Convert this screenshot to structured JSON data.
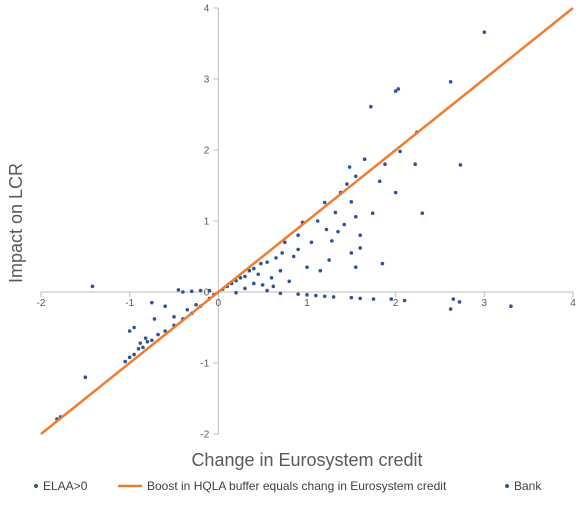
{
  "chart_data": {
    "type": "scatter",
    "title": "",
    "xlabel": "Change in Eurosystem credit",
    "ylabel": "Impact on LCR",
    "xlim": [
      -2,
      4
    ],
    "ylim": [
      -2,
      4
    ],
    "x_ticks": [
      "-2",
      "-1",
      "0",
      "1",
      "2",
      "3",
      "4"
    ],
    "y_ticks": [
      "-2",
      "-1",
      "0",
      "1",
      "2",
      "3",
      "4"
    ],
    "grid": false,
    "legend_position": "bottom",
    "series": [
      {
        "name": "ELAA>0",
        "kind": "points",
        "color": "#2f5597",
        "points": []
      },
      {
        "name": "Boost in HQLA buffer equals chang in Eurosystem credit",
        "kind": "line",
        "color": "#ed7d31",
        "points": [
          [
            -2,
            -2
          ],
          [
            4,
            4
          ]
        ]
      },
      {
        "name": "Bank",
        "kind": "points",
        "color": "#2f5597",
        "points": [
          [
            3.0,
            3.66
          ],
          [
            2.62,
            2.96
          ],
          [
            2.03,
            2.86
          ],
          [
            2.0,
            2.83
          ],
          [
            1.72,
            2.61
          ],
          [
            2.24,
            2.25
          ],
          [
            2.05,
            1.98
          ],
          [
            1.65,
            1.87
          ],
          [
            1.88,
            1.8
          ],
          [
            2.22,
            1.8
          ],
          [
            2.73,
            1.79
          ],
          [
            1.48,
            1.76
          ],
          [
            1.55,
            1.63
          ],
          [
            1.82,
            1.56
          ],
          [
            2.0,
            1.4
          ],
          [
            1.45,
            1.52
          ],
          [
            1.38,
            1.4
          ],
          [
            1.5,
            1.27
          ],
          [
            1.2,
            1.26
          ],
          [
            1.32,
            1.12
          ],
          [
            1.74,
            1.11
          ],
          [
            2.3,
            1.11
          ],
          [
            1.55,
            1.06
          ],
          [
            1.42,
            0.95
          ],
          [
            1.12,
            1.0
          ],
          [
            0.95,
            0.98
          ],
          [
            1.35,
            0.85
          ],
          [
            1.22,
            0.88
          ],
          [
            1.6,
            0.8
          ],
          [
            0.9,
            0.8
          ],
          [
            1.05,
            0.7
          ],
          [
            1.28,
            0.72
          ],
          [
            1.5,
            0.55
          ],
          [
            1.6,
            0.62
          ],
          [
            1.85,
            0.4
          ],
          [
            1.55,
            0.35
          ],
          [
            1.25,
            0.45
          ],
          [
            1.15,
            0.3
          ],
          [
            0.9,
            0.6
          ],
          [
            0.75,
            0.7
          ],
          [
            0.72,
            0.55
          ],
          [
            0.65,
            0.48
          ],
          [
            0.55,
            0.42
          ],
          [
            0.48,
            0.4
          ],
          [
            0.4,
            0.33
          ],
          [
            0.35,
            0.3
          ],
          [
            0.3,
            0.22
          ],
          [
            0.25,
            0.2
          ],
          [
            0.2,
            0.16
          ],
          [
            0.15,
            0.12
          ],
          [
            0.1,
            0.08
          ],
          [
            0.05,
            0.04
          ],
          [
            0.6,
            0.2
          ],
          [
            0.8,
            0.15
          ],
          [
            0.5,
            0.1
          ],
          [
            0.7,
            0.3
          ],
          [
            0.45,
            0.25
          ],
          [
            1.0,
            0.35
          ],
          [
            0.85,
            0.5
          ],
          [
            0.62,
            0.08
          ],
          [
            0.3,
            0.05
          ],
          [
            0.4,
            0.12
          ],
          [
            0.55,
            0.02
          ],
          [
            0.7,
            -0.02
          ],
          [
            0.9,
            -0.03
          ],
          [
            1.0,
            -0.04
          ],
          [
            1.1,
            -0.05
          ],
          [
            1.2,
            -0.06
          ],
          [
            1.3,
            -0.07
          ],
          [
            1.5,
            -0.08
          ],
          [
            1.6,
            -0.09
          ],
          [
            1.75,
            -0.1
          ],
          [
            1.95,
            -0.1
          ],
          [
            2.1,
            -0.12
          ],
          [
            2.65,
            -0.1
          ],
          [
            2.72,
            -0.14
          ],
          [
            2.62,
            -0.24
          ],
          [
            3.3,
            -0.2
          ],
          [
            0.2,
            -0.01
          ],
          [
            -0.1,
            0.02
          ],
          [
            -0.2,
            0.02
          ],
          [
            -0.3,
            0.01
          ],
          [
            -0.4,
            0.0
          ],
          [
            -0.45,
            0.03
          ],
          [
            -0.05,
            -0.04
          ],
          [
            -0.1,
            -0.09
          ],
          [
            -0.2,
            -0.2
          ],
          [
            -0.3,
            -0.3
          ],
          [
            -0.4,
            -0.38
          ],
          [
            -0.5,
            -0.47
          ],
          [
            -0.6,
            -0.55
          ],
          [
            -0.68,
            -0.6
          ],
          [
            -0.75,
            -0.68
          ],
          [
            -0.8,
            -0.7
          ],
          [
            -0.9,
            -0.8
          ],
          [
            -0.95,
            -0.88
          ],
          [
            -1.0,
            -0.92
          ],
          [
            -1.05,
            -0.98
          ],
          [
            -0.72,
            -0.38
          ],
          [
            -0.6,
            -0.2
          ],
          [
            -0.75,
            -0.15
          ],
          [
            -0.82,
            -0.65
          ],
          [
            -0.85,
            -0.78
          ],
          [
            -1.42,
            0.08
          ],
          [
            -1.5,
            -1.2
          ],
          [
            -1.78,
            -1.76
          ],
          [
            -1.82,
            -1.79
          ],
          [
            -0.95,
            -0.5
          ],
          [
            -1.0,
            -0.55
          ],
          [
            -0.88,
            -0.72
          ],
          [
            -0.5,
            -0.35
          ],
          [
            -0.35,
            -0.25
          ],
          [
            -0.25,
            -0.18
          ]
        ]
      }
    ]
  }
}
